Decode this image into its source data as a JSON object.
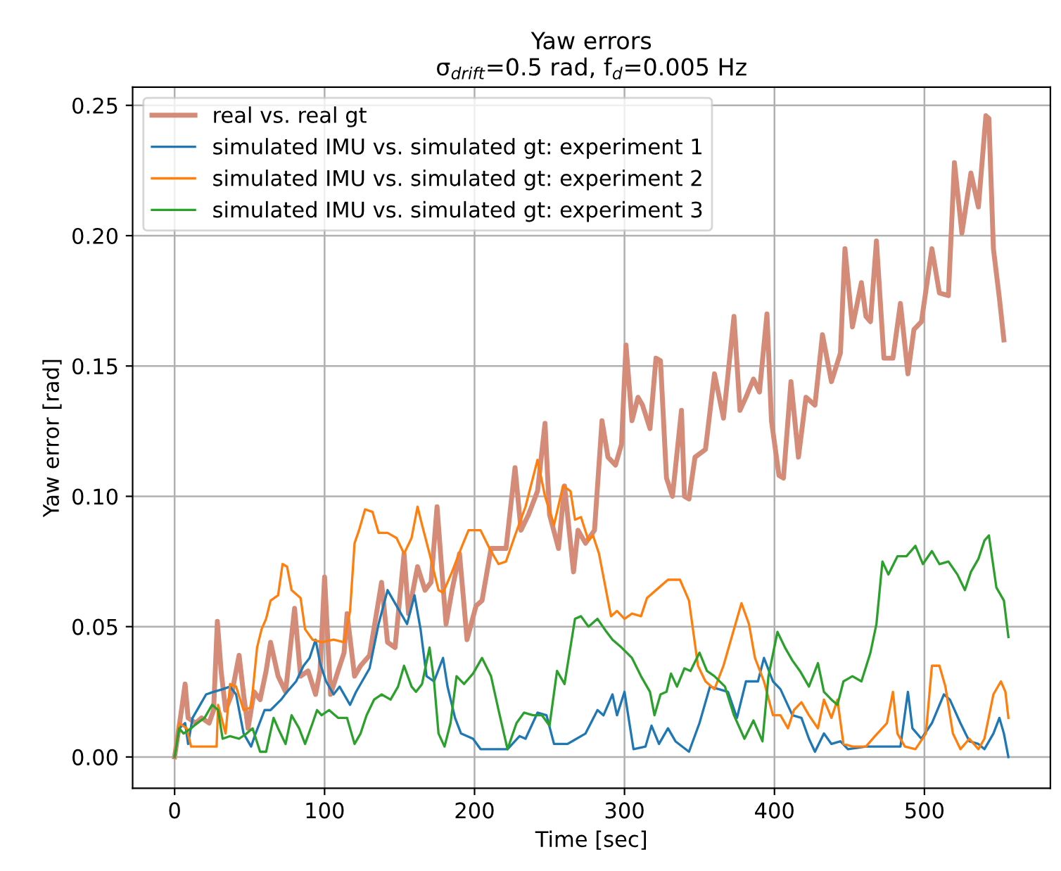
{
  "chart_data": {
    "type": "line",
    "title": "Yaw errors",
    "subtitle": "σ$_{drift}$=0.5 rad, f$_{d}$=0.005 Hz",
    "xlabel": "Time [sec]",
    "ylabel": "Yaw error [rad]",
    "xlim": [
      -28,
      584
    ],
    "xticks": [
      0,
      100,
      200,
      300,
      400,
      500
    ],
    "ylim": [
      -0.012,
      0.257
    ],
    "yticks": [
      {
        "value": 0,
        "label": "0.00"
      },
      {
        "value": 0.05,
        "label": "0.05"
      },
      {
        "value": 0.1,
        "label": "0.10"
      },
      {
        "value": 0.15,
        "label": "0.15"
      },
      {
        "value": 0.2,
        "label": "0.20"
      },
      {
        "value": 0.25,
        "label": "0.25"
      }
    ],
    "grid": true,
    "legend": "top left",
    "marker": "none",
    "line_style": "solid",
    "series": [
      {
        "name": "real vs. real gt",
        "color": "#d48b77",
        "x": [
          0,
          4.6,
          7,
          9,
          14,
          18,
          23,
          26,
          28.5,
          31,
          34,
          38,
          43,
          46,
          49,
          53,
          57,
          61,
          64,
          69,
          74,
          80,
          84,
          89,
          94,
          97,
          100,
          104,
          109,
          113,
          115,
          120,
          124,
          130,
          138,
          142,
          147,
          153,
          156,
          162,
          167,
          171,
          175,
          178,
          181,
          185,
          190,
          195,
          201,
          205,
          211,
          216,
          221,
          227,
          231,
          236,
          242,
          247,
          250,
          256,
          260,
          266,
          269,
          274,
          280,
          285,
          289,
          294,
          298,
          301,
          305,
          309,
          312,
          317,
          321,
          324,
          328,
          332,
          338,
          340,
          343,
          347,
          354,
          360,
          366,
          373,
          377,
          381,
          386,
          390,
          395,
          398,
          403,
          406,
          411,
          416,
          421,
          427,
          432,
          438,
          444,
          447,
          452,
          458,
          461,
          464,
          468,
          473,
          479,
          484,
          489,
          493,
          498,
          505,
          510,
          516,
          520,
          525,
          531,
          536,
          541,
          543,
          546,
          550,
          553
        ],
        "values": [
          0,
          0.018,
          0.028,
          0.015,
          0.013,
          0.015,
          0.013,
          0.018,
          0.052,
          0.033,
          0.018,
          0.024,
          0.039,
          0.024,
          0.011,
          0.025,
          0.022,
          0.033,
          0.044,
          0.031,
          0.025,
          0.057,
          0.031,
          0.033,
          0.024,
          0.033,
          0.069,
          0.024,
          0.033,
          0.04,
          0.055,
          0.031,
          0.035,
          0.039,
          0.067,
          0.044,
          0.042,
          0.078,
          0.055,
          0.073,
          0.064,
          0.067,
          0.096,
          0.073,
          0.051,
          0.064,
          0.078,
          0.045,
          0.058,
          0.06,
          0.08,
          0.08,
          0.08,
          0.111,
          0.087,
          0.093,
          0.102,
          0.128,
          0.093,
          0.08,
          0.104,
          0.071,
          0.087,
          0.082,
          0.087,
          0.129,
          0.115,
          0.112,
          0.12,
          0.158,
          0.129,
          0.138,
          0.135,
          0.126,
          0.153,
          0.152,
          0.107,
          0.1,
          0.133,
          0.1,
          0.099,
          0.115,
          0.118,
          0.147,
          0.13,
          0.169,
          0.133,
          0.138,
          0.145,
          0.14,
          0.17,
          0.129,
          0.108,
          0.107,
          0.144,
          0.115,
          0.138,
          0.135,
          0.162,
          0.144,
          0.155,
          0.195,
          0.165,
          0.182,
          0.169,
          0.167,
          0.198,
          0.153,
          0.153,
          0.174,
          0.147,
          0.164,
          0.167,
          0.195,
          0.178,
          0.177,
          0.228,
          0.201,
          0.224,
          0.211,
          0.246,
          0.245,
          0.195,
          0.176,
          0.16
        ]
      },
      {
        "name": "simulated IMU vs. simulated gt: experiment 1",
        "color": "#1f77b4",
        "x": [
          0,
          3,
          7,
          9,
          12,
          17,
          21,
          26,
          32,
          37,
          41,
          46,
          51,
          54,
          60,
          64,
          71,
          75,
          81,
          86,
          90,
          94,
          97,
          101,
          106,
          110,
          117,
          121,
          130,
          136,
          142,
          148,
          155,
          160,
          164,
          168,
          173,
          179,
          182,
          187,
          191,
          199,
          204,
          213,
          222,
          230,
          234,
          242,
          248,
          253,
          262,
          265,
          274,
          282,
          286,
          292,
          295,
          300,
          306,
          314,
          318,
          323,
          329,
          334,
          343,
          350,
          357,
          363,
          369,
          375,
          381,
          389,
          393,
          399,
          404,
          412,
          418,
          423,
          427,
          433,
          438,
          444,
          449,
          461,
          473,
          484,
          489,
          492,
          498,
          505,
          513,
          517,
          524,
          530,
          536,
          540,
          546,
          550,
          553,
          556
        ],
        "values": [
          0,
          0.011,
          0.013,
          0.005,
          0.015,
          0.02,
          0.024,
          0.025,
          0.026,
          0.027,
          0.024,
          0.009,
          0.004,
          0.009,
          0.018,
          0.018,
          0.022,
          0.025,
          0.029,
          0.035,
          0.038,
          0.045,
          0.036,
          0.029,
          0.024,
          0.027,
          0.02,
          0.025,
          0.034,
          0.051,
          0.064,
          0.058,
          0.051,
          0.062,
          0.049,
          0.031,
          0.029,
          0.038,
          0.027,
          0.015,
          0.009,
          0.007,
          0.003,
          0.003,
          0.003,
          0.008,
          0.007,
          0.017,
          0.016,
          0.005,
          0.005,
          0.006,
          0.009,
          0.018,
          0.016,
          0.024,
          0.016,
          0.025,
          0.003,
          0.004,
          0.012,
          0.005,
          0.011,
          0.006,
          0.002,
          0.013,
          0.027,
          0.026,
          0.025,
          0.015,
          0.029,
          0.029,
          0.038,
          0.029,
          0.026,
          0.016,
          0.015,
          0.007,
          0.002,
          0.009,
          0.005,
          0.006,
          0.003,
          0.004,
          0.004,
          0.004,
          0.025,
          0.011,
          0.007,
          0.013,
          0.024,
          0.022,
          0.013,
          0.006,
          0.005,
          0.003,
          0.009,
          0.015,
          0.009,
          0
        ]
      },
      {
        "name": "simulated IMU vs. simulated gt: experiment 2",
        "color": "#ff7f0e",
        "x": [
          0,
          3,
          8,
          11,
          17,
          28,
          29,
          34,
          37,
          41,
          46,
          51,
          55,
          58,
          61,
          64,
          69,
          72,
          75,
          78,
          84,
          87,
          92,
          98,
          106,
          113,
          117,
          120,
          123,
          127,
          132,
          136,
          142,
          148,
          153,
          158,
          162,
          165,
          170,
          176,
          179,
          185,
          191,
          196,
          204,
          210,
          216,
          221,
          227,
          234,
          242,
          247,
          253,
          259,
          264,
          267,
          271,
          276,
          279,
          283,
          286,
          291,
          295,
          300,
          305,
          311,
          315,
          323,
          329,
          337,
          343,
          349,
          354,
          360,
          366,
          372,
          378,
          383,
          387,
          393,
          399,
          404,
          409,
          413,
          418,
          423,
          429,
          433,
          438,
          442,
          446,
          452,
          461,
          467,
          475,
          479,
          482,
          487,
          494,
          501,
          505,
          510,
          514,
          519,
          524,
          530,
          536,
          540,
          546,
          551,
          554,
          556
        ],
        "values": [
          0,
          0.013,
          0.011,
          0.004,
          0.004,
          0.004,
          0.02,
          0.009,
          0.028,
          0.027,
          0.018,
          0.019,
          0.042,
          0.049,
          0.053,
          0.06,
          0.062,
          0.074,
          0.073,
          0.064,
          0.061,
          0.049,
          0.045,
          0.044,
          0.045,
          0.044,
          0.056,
          0.082,
          0.087,
          0.095,
          0.094,
          0.086,
          0.086,
          0.084,
          0.078,
          0.084,
          0.096,
          0.089,
          0.078,
          0.064,
          0.063,
          0.071,
          0.08,
          0.087,
          0.087,
          0.08,
          0.074,
          0.075,
          0.085,
          0.096,
          0.114,
          0.1,
          0.089,
          0.104,
          0.102,
          0.091,
          0.092,
          0.083,
          0.085,
          0.078,
          0.069,
          0.054,
          0.056,
          0.053,
          0.055,
          0.054,
          0.061,
          0.065,
          0.068,
          0.068,
          0.06,
          0.035,
          0.029,
          0.026,
          0.035,
          0.047,
          0.059,
          0.051,
          0.038,
          0.029,
          0.016,
          0.016,
          0.011,
          0.018,
          0.021,
          0.016,
          0.011,
          0.022,
          0.015,
          0.022,
          0.005,
          0.004,
          0.004,
          0.008,
          0.013,
          0.025,
          0.009,
          0.004,
          0.003,
          0.009,
          0.035,
          0.035,
          0.027,
          0.009,
          0.003,
          0.007,
          0.003,
          0.007,
          0.024,
          0.029,
          0.025,
          0.015
        ]
      },
      {
        "name": "simulated IMU vs. simulated gt: experiment 3",
        "color": "#2ca02c",
        "x": [
          0,
          3,
          6,
          11,
          15,
          20,
          25,
          29,
          32,
          37,
          43,
          48,
          52,
          57,
          61,
          66,
          69,
          74,
          78,
          83,
          87,
          92,
          95,
          98,
          103,
          109,
          115,
          120,
          124,
          128,
          133,
          138,
          144,
          149,
          153,
          158,
          161,
          165,
          170,
          173,
          176,
          180,
          184,
          188,
          193,
          199,
          205,
          211,
          216,
          222,
          228,
          233,
          239,
          245,
          250,
          255,
          260,
          267,
          271,
          276,
          282,
          288,
          292,
          298,
          305,
          311,
          317,
          320,
          324,
          328,
          331,
          335,
          340,
          344,
          350,
          355,
          360,
          367,
          373,
          380,
          386,
          392,
          396,
          402,
          407,
          412,
          417,
          423,
          429,
          433,
          438,
          442,
          446,
          452,
          458,
          464,
          468,
          472,
          476,
          482,
          488,
          494,
          499,
          505,
          510,
          516,
          522,
          527,
          531,
          536,
          540,
          543,
          548,
          553,
          556
        ],
        "values": [
          0,
          0.011,
          0.009,
          0.011,
          0.013,
          0.015,
          0.02,
          0.018,
          0.007,
          0.008,
          0.007,
          0.009,
          0.011,
          0.002,
          0.002,
          0.015,
          0.011,
          0.005,
          0.016,
          0.011,
          0.005,
          0.013,
          0.018,
          0.016,
          0.018,
          0.015,
          0.015,
          0.005,
          0.009,
          0.016,
          0.022,
          0.024,
          0.022,
          0.027,
          0.035,
          0.027,
          0.025,
          0.028,
          0.042,
          0.029,
          0.009,
          0.004,
          0.013,
          0.031,
          0.028,
          0.032,
          0.038,
          0.031,
          0.018,
          0.003,
          0.013,
          0.017,
          0.016,
          0.016,
          0.012,
          0.033,
          0.028,
          0.053,
          0.054,
          0.05,
          0.053,
          0.048,
          0.045,
          0.042,
          0.038,
          0.031,
          0.025,
          0.016,
          0.024,
          0.025,
          0.032,
          0.027,
          0.034,
          0.033,
          0.04,
          0.033,
          0.031,
          0.027,
          0.016,
          0.007,
          0.014,
          0.006,
          0.031,
          0.048,
          0.042,
          0.037,
          0.033,
          0.027,
          0.036,
          0.025,
          0.022,
          0.02,
          0.029,
          0.031,
          0.029,
          0.04,
          0.051,
          0.075,
          0.07,
          0.077,
          0.077,
          0.081,
          0.074,
          0.079,
          0.074,
          0.075,
          0.07,
          0.064,
          0.071,
          0.076,
          0.083,
          0.085,
          0.065,
          0.06,
          0.046
        ]
      }
    ]
  }
}
